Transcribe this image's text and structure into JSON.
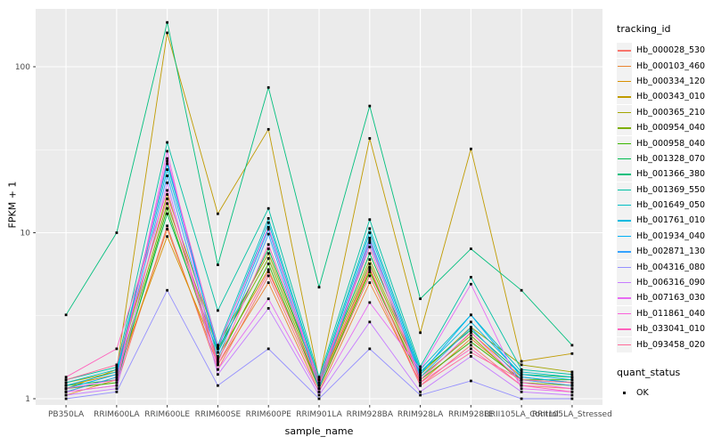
{
  "figure": {
    "background": "#FFFFFF",
    "panel_background": "#EBEBEB",
    "gridline_color": "#FFFFFF",
    "tick_color": "#333333",
    "tick_label_color": "#4D4D4D",
    "legend_key_fill": "#F2F2F2"
  },
  "chart_data": {
    "type": "line",
    "title": "",
    "xlabel": "sample_name",
    "ylabel": "FPKM + 1",
    "y_scale": "log10",
    "y_ticks": [
      1,
      10,
      100
    ],
    "y_tick_labels": [
      "1",
      "10",
      "100"
    ],
    "y_minor_ticks": [
      3.162,
      31.623
    ],
    "ylim": [
      0.92,
      223
    ],
    "grid": true,
    "legend_position": "right",
    "legend_title": "tracking_id",
    "point_marker": {
      "shape": "filled-square",
      "color": "#000000",
      "size": 2.8
    },
    "categories": [
      "PB350LA",
      "RRIM600LA",
      "RRIM600LE",
      "RRIM600SE",
      "RRIM600PE",
      "RRIM901LA",
      "RRIM928BA",
      "RRIM928LA",
      "RRIM928LE",
      "RRII105LA_Control",
      "RRII105LA_Stressed"
    ],
    "series": [
      {
        "name": "Hb_000028_530",
        "color": "#F8766D",
        "values": [
          1.1,
          1.2,
          11.0,
          1.5,
          5.5,
          1.15,
          5.5,
          1.2,
          2.1,
          1.2,
          1.15
        ]
      },
      {
        "name": "Hb_000103_460",
        "color": "#EA8331",
        "values": [
          1.05,
          1.3,
          10.5,
          1.6,
          5.0,
          1.1,
          5.0,
          1.25,
          2.3,
          1.3,
          1.2
        ]
      },
      {
        "name": "Hb_000334_120",
        "color": "#D89000",
        "values": [
          1.2,
          1.4,
          9.5,
          1.8,
          6.0,
          1.2,
          6.0,
          1.3,
          2.5,
          1.35,
          1.25
        ]
      },
      {
        "name": "Hb_000343_010",
        "color": "#C09B00",
        "values": [
          1.15,
          1.5,
          160.0,
          13.0,
          42.0,
          1.3,
          37.0,
          2.5,
          32.0,
          1.68,
          1.87
        ]
      },
      {
        "name": "Hb_000365_210",
        "color": "#A3A500",
        "values": [
          1.25,
          1.45,
          17.0,
          2.1,
          7.5,
          1.25,
          6.9,
          1.4,
          2.7,
          1.6,
          1.45
        ]
      },
      {
        "name": "Hb_000954_040",
        "color": "#7CAE00",
        "values": [
          1.1,
          1.35,
          15.0,
          2.0,
          7.0,
          1.2,
          6.5,
          1.35,
          2.4,
          1.25,
          1.2
        ]
      },
      {
        "name": "Hb_000958_040",
        "color": "#39B600",
        "values": [
          1.15,
          1.25,
          14.0,
          1.7,
          6.5,
          1.15,
          5.8,
          1.3,
          2.2,
          1.3,
          1.3
        ]
      },
      {
        "name": "Hb_001328_070",
        "color": "#00BB4E",
        "values": [
          1.2,
          1.3,
          13.0,
          1.9,
          8.0,
          1.25,
          7.5,
          1.45,
          2.6,
          1.4,
          1.35
        ]
      },
      {
        "name": "Hb_001366_380",
        "color": "#00BF7D",
        "values": [
          3.2,
          10.0,
          185.0,
          6.4,
          75.0,
          4.7,
          58.0,
          4.0,
          8.0,
          4.5,
          2.1
        ]
      },
      {
        "name": "Hb_001369_550",
        "color": "#00C1A3",
        "values": [
          1.3,
          1.55,
          35.0,
          3.4,
          14.0,
          1.35,
          12.0,
          1.56,
          5.4,
          1.5,
          1.4
        ]
      },
      {
        "name": "Hb_001649_050",
        "color": "#00BFC4",
        "values": [
          1.25,
          1.5,
          26.0,
          2.1,
          12.2,
          1.3,
          10.6,
          1.5,
          3.2,
          1.45,
          1.35
        ]
      },
      {
        "name": "Hb_001761_010",
        "color": "#00BAE0",
        "values": [
          1.2,
          1.45,
          24.0,
          2.0,
          11.5,
          1.25,
          10.0,
          1.45,
          2.9,
          1.4,
          1.3
        ]
      },
      {
        "name": "Hb_001934_040",
        "color": "#00B0F6",
        "values": [
          1.15,
          1.4,
          27.0,
          1.9,
          10.5,
          1.2,
          9.3,
          1.4,
          3.2,
          1.35,
          1.25
        ]
      },
      {
        "name": "Hb_002871_130",
        "color": "#35A2FF",
        "values": [
          1.1,
          1.35,
          22.0,
          1.75,
          9.8,
          1.15,
          8.7,
          1.35,
          2.68,
          1.3,
          1.2
        ]
      },
      {
        "name": "Hb_004316_080",
        "color": "#9590FF",
        "values": [
          1.0,
          1.1,
          4.5,
          1.2,
          2.0,
          1.0,
          2.0,
          1.05,
          1.28,
          1.0,
          1.0
        ]
      },
      {
        "name": "Hb_006316_090",
        "color": "#C77CFF",
        "values": [
          1.05,
          1.15,
          20.0,
          1.4,
          3.5,
          1.05,
          2.9,
          1.1,
          1.8,
          1.1,
          1.05
        ]
      },
      {
        "name": "Hb_007163_030",
        "color": "#E76BF3",
        "values": [
          1.1,
          1.2,
          31.0,
          1.5,
          4.0,
          1.1,
          3.8,
          1.5,
          4.9,
          1.15,
          1.1
        ]
      },
      {
        "name": "Hb_011861_040",
        "color": "#FA62DB",
        "values": [
          1.15,
          1.3,
          28.0,
          2.05,
          10.8,
          1.2,
          9.0,
          1.3,
          2.52,
          1.25,
          1.15
        ]
      },
      {
        "name": "Hb_033041_010",
        "color": "#FF62BC",
        "values": [
          1.35,
          2.0,
          18.0,
          1.65,
          8.5,
          1.3,
          8.2,
          1.25,
          2.0,
          1.2,
          1.1
        ]
      },
      {
        "name": "Hb_093458_020",
        "color": "#FF6A98",
        "values": [
          1.3,
          1.6,
          16.0,
          1.6,
          5.8,
          1.25,
          6.2,
          1.2,
          1.9,
          1.3,
          1.25
        ]
      }
    ],
    "quant_legend": {
      "title": "quant_status",
      "items": [
        {
          "label": "OK",
          "marker": "filled-square",
          "color": "#000000"
        }
      ]
    }
  }
}
